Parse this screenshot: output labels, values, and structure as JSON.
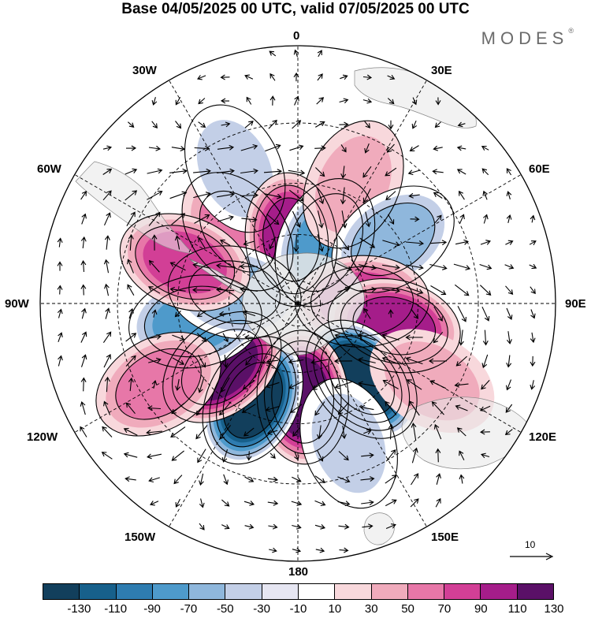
{
  "title": "Base 04/05/2025 00 UTC, valid 07/05/2025 00 UTC",
  "brand": {
    "name": "MODES",
    "mark": "®"
  },
  "longitude_labels": {
    "deg_0": "0",
    "deg_30e": "30E",
    "deg_60e": "60E",
    "deg_90e": "90E",
    "deg_120e": "120E",
    "deg_150e": "150E",
    "deg_180": "180",
    "deg_150w": "150W",
    "deg_120w": "120W",
    "deg_90w": "90W",
    "deg_60w": "60W",
    "deg_30w": "30W"
  },
  "reference_vector": {
    "label": "10"
  },
  "colorbar": {
    "tick_labels": [
      "-130",
      "-110",
      "-90",
      "-70",
      "-50",
      "-30",
      "-10",
      "10",
      "30",
      "50",
      "70",
      "90",
      "110",
      "130"
    ],
    "colors": [
      "#123f5c",
      "#17608b",
      "#2e7cb0",
      "#4e9acb",
      "#8fb7dc",
      "#c3cfe7",
      "#e6e6f2",
      "#ffffff",
      "#f8d8dc",
      "#f0abbc",
      "#e777a8",
      "#d23f96",
      "#a51d8a",
      "#5a1067"
    ]
  },
  "map": {
    "land_color": "#e8e8e8",
    "anomalies": [
      {
        "lon": -40,
        "lat": -50,
        "value": 65
      },
      {
        "lon": -25,
        "lat": -30,
        "value": -40
      },
      {
        "lon": -6,
        "lat": -62,
        "value": 100
      },
      {
        "lon": 24,
        "lat": -61,
        "value": -80
      },
      {
        "lon": 25,
        "lat": -36,
        "value": 35
      },
      {
        "lon": 56,
        "lat": -42,
        "value": -60
      },
      {
        "lon": 88,
        "lat": -62,
        "value": 70
      },
      {
        "lon": 103,
        "lat": -48,
        "value": 90
      },
      {
        "lon": 140,
        "lat": -48,
        "value": -135
      },
      {
        "lon": 120,
        "lat": -28,
        "value": 30
      },
      {
        "lon": 177,
        "lat": -50,
        "value": 120
      },
      {
        "lon": -155,
        "lat": -45,
        "value": -140
      },
      {
        "lon": -130,
        "lat": -48,
        "value": 125
      },
      {
        "lon": -100,
        "lat": -46,
        "value": -75
      },
      {
        "lon": -120,
        "lat": -26,
        "value": 55
      },
      {
        "lon": -80,
        "lat": -62,
        "value": -55
      },
      {
        "lon": -70,
        "lat": -40,
        "value": 80
      },
      {
        "lon": 160,
        "lat": -30,
        "value": -35
      }
    ]
  }
}
